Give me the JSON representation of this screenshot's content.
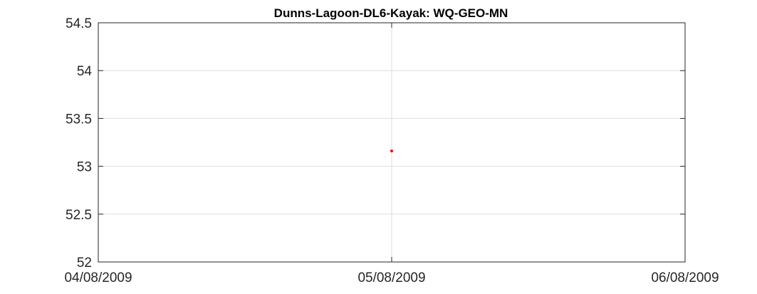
{
  "chart_data": {
    "type": "scatter",
    "title": "Dunns-Lagoon-DL6-Kayak: WQ-GEO-MN",
    "xlabel": "",
    "ylabel": "",
    "x_ticks": [
      "04/08/2009",
      "05/08/2009",
      "06/08/2009"
    ],
    "y_ticks": [
      "52",
      "52.5",
      "53",
      "53.5",
      "54",
      "54.5"
    ],
    "xlim": [
      "04/08/2009",
      "06/08/2009"
    ],
    "ylim": [
      52,
      54.5
    ],
    "grid": true,
    "series": [
      {
        "color": "#ff0000",
        "points": [
          {
            "x": "05/08/2009",
            "y": 53.16
          }
        ]
      }
    ]
  }
}
